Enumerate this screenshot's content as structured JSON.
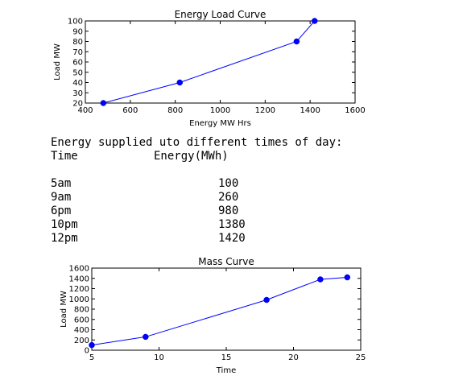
{
  "chart_data": [
    {
      "type": "line",
      "title": "Energy Load Curve",
      "xlabel": "Energy MW Hrs",
      "ylabel": "Load MW",
      "xlim": [
        400,
        1600
      ],
      "ylim": [
        20,
        100
      ],
      "x_ticks": [
        "400",
        "600",
        "800",
        "1000",
        "1200",
        "1400",
        "1600"
      ],
      "y_ticks": [
        "20",
        "30",
        "40",
        "50",
        "60",
        "70",
        "80",
        "90",
        "100"
      ],
      "grid": false,
      "color": "#0000ff",
      "series": [
        {
          "x": [
            480,
            820,
            1340,
            1420
          ],
          "y": [
            20,
            40,
            80,
            100
          ]
        }
      ]
    },
    {
      "type": "line",
      "title": "Mass Curve",
      "xlabel": "Time",
      "ylabel": "Load MW",
      "xlim": [
        5,
        25
      ],
      "ylim": [
        0,
        1600
      ],
      "x_ticks": [
        "5",
        "10",
        "15",
        "20",
        "25"
      ],
      "y_ticks": [
        "0",
        "200",
        "400",
        "600",
        "800",
        "1000",
        "1200",
        "1400",
        "1600"
      ],
      "grid": false,
      "color": "#0000ff",
      "series": [
        {
          "x": [
            5,
            9,
            18,
            22,
            24
          ],
          "y": [
            100,
            260,
            980,
            1380,
            1420
          ]
        }
      ]
    }
  ],
  "text": {
    "heading": "Energy supplied uto different times of day:",
    "col_time": "Time",
    "col_energy": "Energy(MWh)",
    "rows": [
      {
        "time": "5am",
        "energy": "100"
      },
      {
        "time": "9am",
        "energy": "260"
      },
      {
        "time": "6pm",
        "energy": "980"
      },
      {
        "time": "10pm",
        "energy": "1380"
      },
      {
        "time": "12pm",
        "energy": "1420"
      }
    ]
  }
}
